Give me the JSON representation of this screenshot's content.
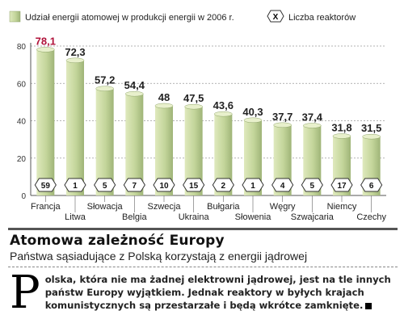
{
  "legend": {
    "energy_share_label": "Udział energii atomowej w produkcji energii w 2006 r.",
    "reactor_symbol": "X",
    "reactor_label": "Liczba reaktorów"
  },
  "chart_data": {
    "type": "bar",
    "categories": [
      "Francja",
      "Litwa",
      "Słowacja",
      "Belgia",
      "Szwecja",
      "Ukraina",
      "Bułgaria",
      "Słowenia",
      "Węgry",
      "Szwajcaria",
      "Niemcy",
      "Czechy"
    ],
    "series": [
      {
        "name": "Udział energii atomowej w produkcji energii w 2006 r.",
        "values": [
          78.1,
          72.3,
          57.2,
          54.4,
          48,
          47.5,
          43.6,
          40.3,
          37.7,
          37.4,
          31.8,
          31.5
        ]
      }
    ],
    "value_labels": [
      "78,1",
      "72,3",
      "57,2",
      "54,4",
      "48",
      "47,5",
      "43,6",
      "40,3",
      "37,7",
      "37,4",
      "31,8",
      "31,5"
    ],
    "reactors": [
      "59",
      "1",
      "5",
      "7",
      "10",
      "15",
      "2",
      "1",
      "4",
      "5",
      "17",
      "6"
    ],
    "ylim": [
      0,
      80
    ],
    "yticks": [
      "0",
      "20",
      "40",
      "60",
      "80"
    ],
    "grid": true,
    "colors": {
      "bar": "#c3d59a",
      "bar_highlight": "#e8f0cc",
      "bar_shadow": "#8fa46a",
      "first_value": "#b0123a",
      "grid": "#9a9a9a"
    }
  },
  "headline": "Atomowa zależność Europy",
  "subhead": "Państwa sąsiadujące z Polską korzystają z energii jądrowej",
  "article": {
    "dropcap": "P",
    "text": "olska, która nie ma żadnej elektrowni jądrowej, jest na tle innych państw Europy wyjątkiem. Jednak reaktory w byłych krajach komunistycznych są przestarzałe i będą wkrótce zamknięte."
  }
}
